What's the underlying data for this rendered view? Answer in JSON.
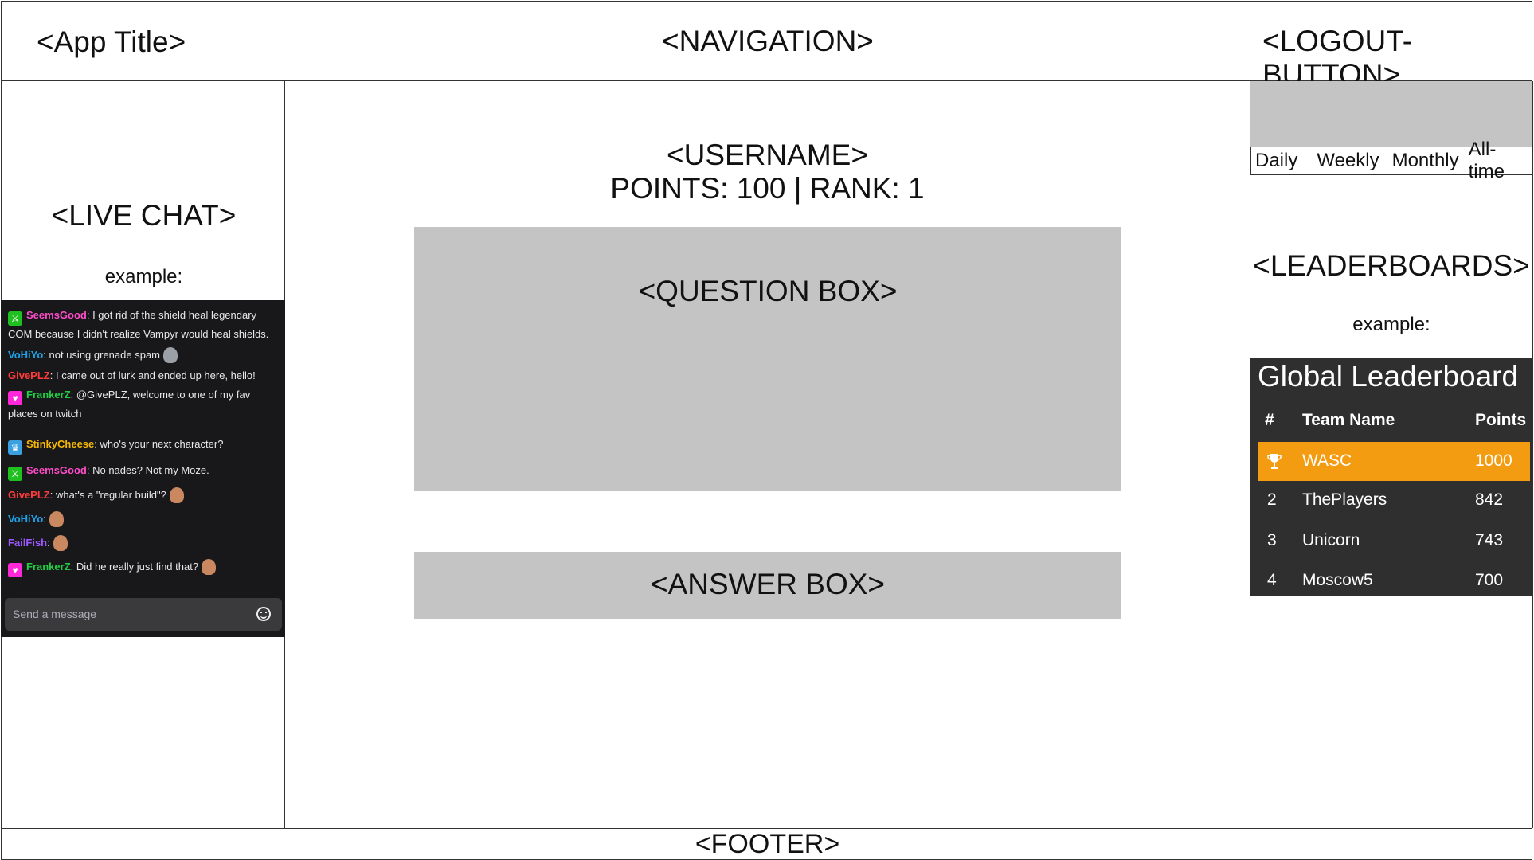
{
  "header": {
    "app_title": "<App Title>",
    "navigation": "<NAVIGATION>",
    "logout": "<LOGOUT-BUTTON>"
  },
  "left": {
    "live_chat_label": "<LIVE CHAT>",
    "example_label": "example:",
    "chat": {
      "messages": [
        {
          "user": "SeemsGood",
          "user_color": "#ff4dc9",
          "badge": "sword-badge",
          "text": ": I got rid of the shield heal legendary COM because I didn't realize Vampyr would heal shields."
        },
        {
          "user": "VoHiYo",
          "user_color": "#1ea1e8",
          "badge": "",
          "text": ": not using grenade spam"
        },
        {
          "user": "GivePLZ",
          "user_color": "#ff3b3b",
          "badge": "",
          "text": ": I came out of lurk and ended up here, hello!"
        },
        {
          "user": "FrankerZ",
          "user_color": "#22cc44",
          "badge": "heart-badge",
          "text": ": @GivePLZ, welcome to one of my fav places on twitch"
        },
        {
          "user": "StinkyCheese",
          "user_color": "#f5b700",
          "badge": "crown-badge",
          "text": ": who's your next character?"
        },
        {
          "user": "SeemsGood",
          "user_color": "#ff4dc9",
          "badge": "sword-badge",
          "text": ": No nades? Not my Moze."
        },
        {
          "user": "GivePLZ",
          "user_color": "#ff3b3b",
          "badge": "",
          "text": ": what's a \"regular build\"?"
        },
        {
          "user": "VoHiYo",
          "user_color": "#1ea1e8",
          "badge": "",
          "text": ":"
        },
        {
          "user": "FailFish",
          "user_color": "#9b59ff",
          "badge": "",
          "text": ":"
        },
        {
          "user": "FrankerZ",
          "user_color": "#22cc44",
          "badge": "heart-badge",
          "text": ": Did he really just find that?"
        }
      ],
      "input_placeholder": "Send a message"
    }
  },
  "center": {
    "username": "<USERNAME>",
    "points_rank": "POINTS: 100 | RANK: 1",
    "question_label": "<QUESTION BOX>",
    "answer_label": "<ANSWER BOX>"
  },
  "right": {
    "tabs": [
      "Daily",
      "Weekly",
      "Monthly",
      "All-time"
    ],
    "leaderboards_label": "<LEADERBOARDS>",
    "example_label": "example:",
    "leaderboard": {
      "title": "Global Leaderboard",
      "columns": [
        "#",
        "Team Name",
        "Points"
      ],
      "rows": [
        {
          "rank": "",
          "team": "WASC",
          "points": "1000"
        },
        {
          "rank": "2",
          "team": "ThePlayers",
          "points": "842"
        },
        {
          "rank": "3",
          "team": "Unicorn",
          "points": "743"
        },
        {
          "rank": "4",
          "team": "Moscow5",
          "points": "700"
        }
      ],
      "highlight_color": "#f39c12"
    }
  },
  "footer": {
    "label": "<FOOTER>"
  }
}
